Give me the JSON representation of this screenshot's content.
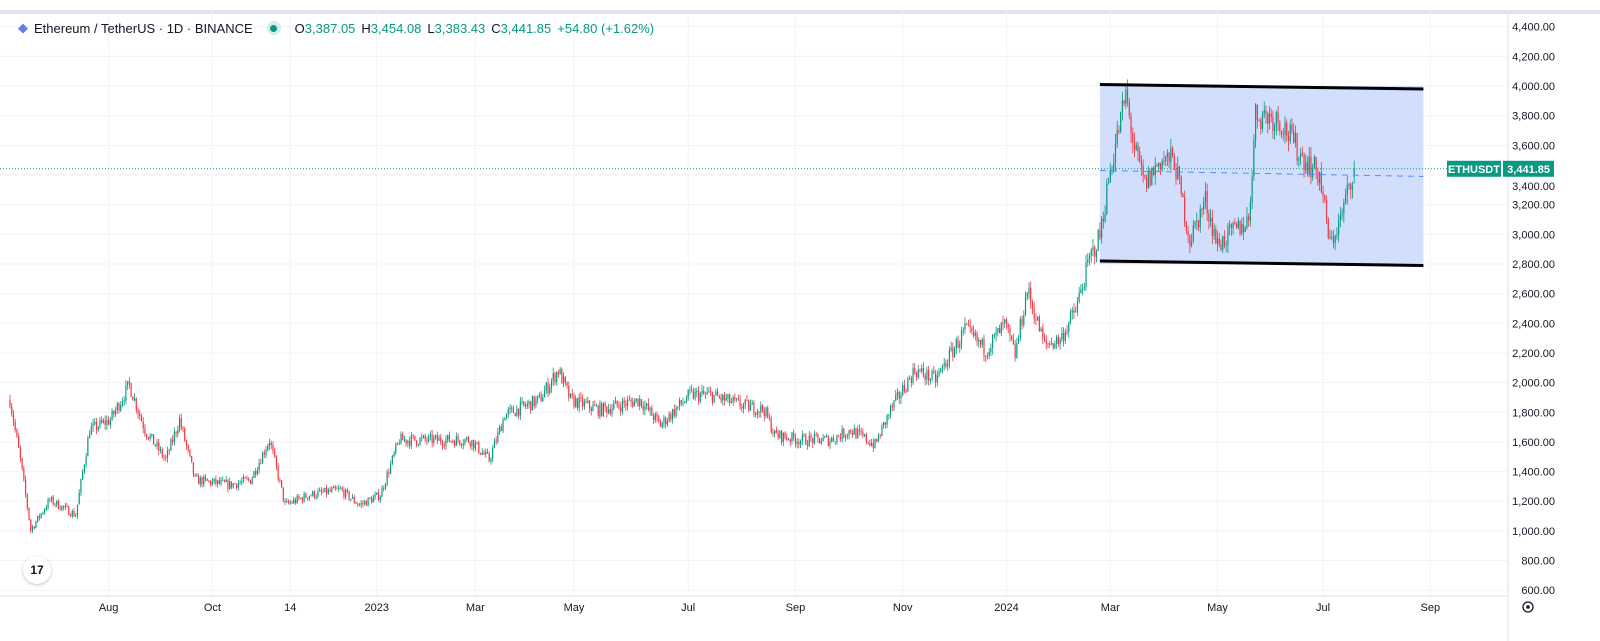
{
  "header": {
    "symbol_title": "Ethereum / TetherUS · 1D · BINANCE",
    "open_label": "O",
    "open": "3,387.05",
    "high_label": "H",
    "high": "3,454.08",
    "low_label": "L",
    "low": "3,383.43",
    "close_label": "C",
    "close": "3,441.85",
    "change": "+54.80 (+1.62%)"
  },
  "price_tag": {
    "symbol": "ETHUSDT",
    "price": "3,441.85"
  },
  "logo_text": "17",
  "colors": {
    "up": "#089981",
    "down": "#f23645",
    "box_fill": "#c9d9fd",
    "accent": "#089981"
  },
  "chart_data": {
    "type": "candlestick",
    "title": "Ethereum / TetherUS · 1D · BINANCE",
    "x_unit": "days since 2022-06-03",
    "ylim": [
      600,
      4400
    ],
    "yticks": [
      4400,
      4200,
      4000,
      3800,
      3600,
      3400,
      3200,
      3000,
      2800,
      2600,
      2400,
      2200,
      2000,
      1800,
      1600,
      1400,
      1200,
      1000,
      800,
      600
    ],
    "ytick_labels": [
      "4,400.00",
      "4,200.00",
      "4,000.00",
      "3,800.00",
      "3,600.00",
      "3,400.00",
      "3,200.00",
      "3,000.00",
      "2,800.00",
      "2,600.00",
      "2,400.00",
      "2,200.00",
      "2,000.00",
      "1,800.00",
      "1,600.00",
      "1,400.00",
      "1,200.00",
      "1,000.00",
      "800.00",
      "600.00"
    ],
    "xticks": [
      {
        "day": 57,
        "label": "Aug"
      },
      {
        "day": 117,
        "label": "Oct"
      },
      {
        "day": 162,
        "label": "14"
      },
      {
        "day": 212,
        "label": "2023"
      },
      {
        "day": 269,
        "label": "Mar"
      },
      {
        "day": 326,
        "label": "May"
      },
      {
        "day": 392,
        "label": "Jul"
      },
      {
        "day": 454,
        "label": "Sep"
      },
      {
        "day": 516,
        "label": "Nov"
      },
      {
        "day": 576,
        "label": "2024"
      },
      {
        "day": 636,
        "label": "Mar"
      },
      {
        "day": 698,
        "label": "May"
      },
      {
        "day": 759,
        "label": "Jul"
      },
      {
        "day": 821,
        "label": "Sep"
      }
    ],
    "close_path": [
      [
        0,
        1883
      ],
      [
        6,
        1478
      ],
      [
        12,
        1006
      ],
      [
        23,
        1208
      ],
      [
        38,
        1107
      ],
      [
        46,
        1680
      ],
      [
        58,
        1748
      ],
      [
        69,
        1985
      ],
      [
        78,
        1680
      ],
      [
        90,
        1478
      ],
      [
        98,
        1748
      ],
      [
        107,
        1343
      ],
      [
        127,
        1310
      ],
      [
        139,
        1343
      ],
      [
        150,
        1613
      ],
      [
        159,
        1175
      ],
      [
        173,
        1242
      ],
      [
        191,
        1276
      ],
      [
        202,
        1175
      ],
      [
        214,
        1242
      ],
      [
        225,
        1613
      ],
      [
        249,
        1613
      ],
      [
        266,
        1613
      ],
      [
        277,
        1478
      ],
      [
        286,
        1782
      ],
      [
        306,
        1883
      ],
      [
        317,
        2085
      ],
      [
        324,
        1883
      ],
      [
        341,
        1815
      ],
      [
        364,
        1883
      ],
      [
        376,
        1714
      ],
      [
        393,
        1916
      ],
      [
        405,
        1916
      ],
      [
        422,
        1849
      ],
      [
        436,
        1815
      ],
      [
        442,
        1647
      ],
      [
        457,
        1613
      ],
      [
        474,
        1613
      ],
      [
        486,
        1680
      ],
      [
        500,
        1579
      ],
      [
        509,
        1815
      ],
      [
        523,
        2085
      ],
      [
        535,
        2018
      ],
      [
        552,
        2355
      ],
      [
        564,
        2220
      ],
      [
        575,
        2389
      ],
      [
        581,
        2186
      ],
      [
        588,
        2624
      ],
      [
        598,
        2254
      ],
      [
        607,
        2288
      ],
      [
        616,
        2490
      ],
      [
        624,
        2827
      ],
      [
        630,
        2995
      ],
      [
        636,
        3434
      ],
      [
        645,
        3940
      ],
      [
        650,
        3568
      ],
      [
        656,
        3332
      ],
      [
        665,
        3501
      ],
      [
        673,
        3501
      ],
      [
        682,
        2961
      ],
      [
        691,
        3231
      ],
      [
        698,
        2928
      ],
      [
        705,
        2995
      ],
      [
        716,
        3096
      ],
      [
        720,
        3804
      ],
      [
        726,
        3804
      ],
      [
        734,
        3771
      ],
      [
        746,
        3535
      ],
      [
        757,
        3400
      ],
      [
        763,
        2928
      ],
      [
        769,
        3096
      ],
      [
        775,
        3366
      ],
      [
        777,
        3441.85
      ]
    ],
    "last_price": 3441.85,
    "annotations": {
      "range_box": {
        "day_start": 630,
        "day_end": 817,
        "price_top": 4000,
        "price_bottom": 2800
      },
      "resistance_line": {
        "day_start": 630,
        "day_end": 817,
        "price_start": 4010,
        "price_end": 3980
      },
      "support_line": {
        "day_start": 630,
        "day_end": 817,
        "price_start": 2820,
        "price_end": 2790
      },
      "mid_line_price": 3400
    }
  }
}
